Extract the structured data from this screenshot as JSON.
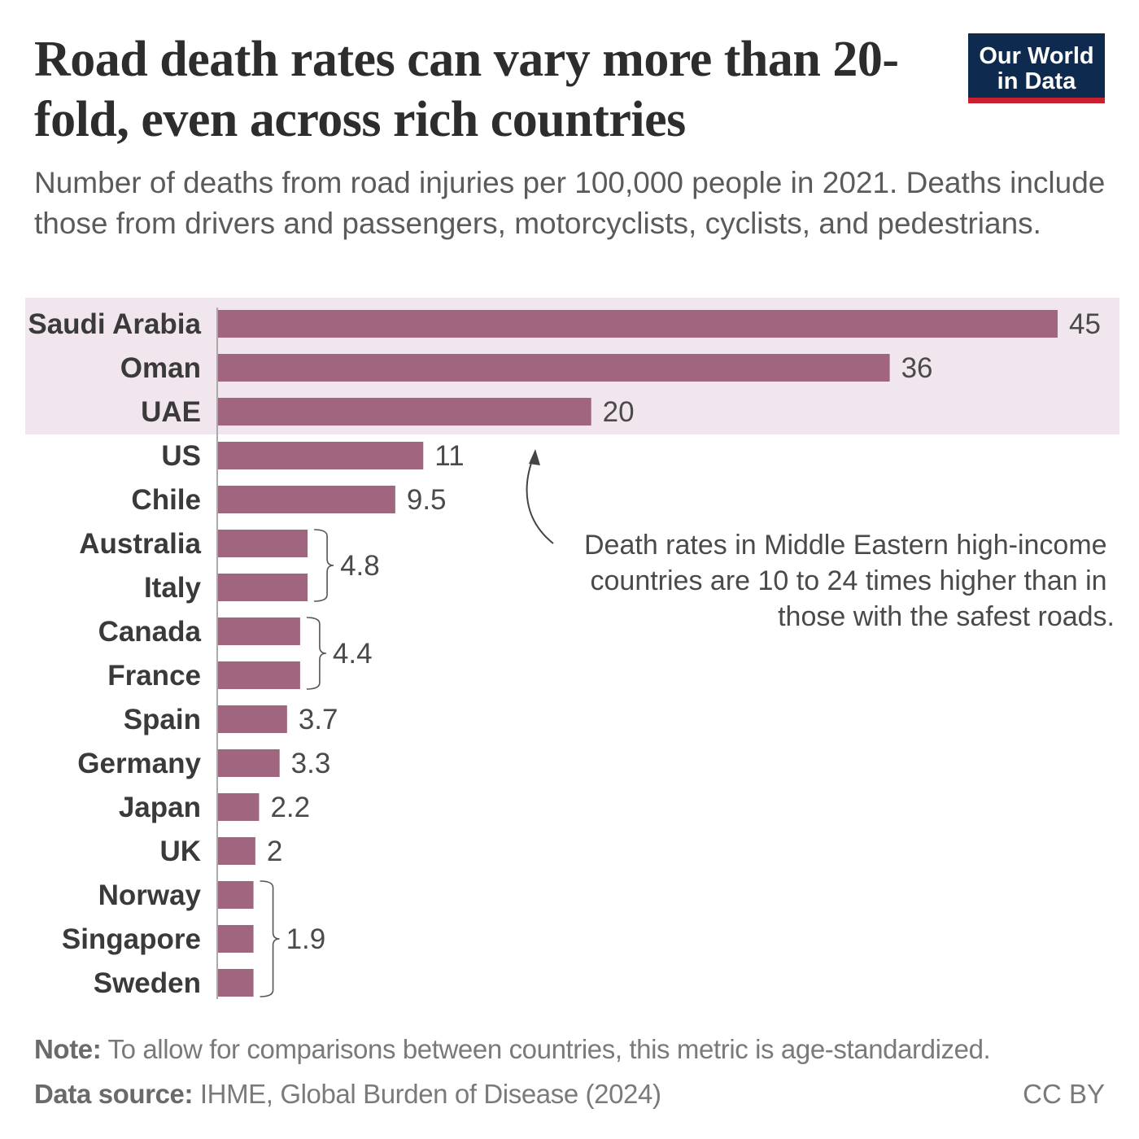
{
  "title": "Road death rates can vary more than 20-fold, even across rich countries",
  "subtitle": "Number of deaths from road injuries per 100,000 people in 2021. Deaths include those from drivers and passengers, motorcyclists, cyclists, and pedestrians.",
  "logo": {
    "line1": "Our World",
    "line2": "in Data"
  },
  "colors": {
    "bar": "#a0657f",
    "highlight": "#f1e6ed",
    "logo_bg": "#0e2a4e",
    "logo_accent": "#c8202f"
  },
  "chart_data": {
    "type": "bar",
    "orientation": "horizontal",
    "categories": [
      "Saudi Arabia",
      "Oman",
      "UAE",
      "US",
      "Chile",
      "Australia",
      "Italy",
      "Canada",
      "France",
      "Spain",
      "Germany",
      "Japan",
      "UK",
      "Norway",
      "Singapore",
      "Sweden"
    ],
    "values": [
      45,
      36,
      20,
      11,
      9.5,
      4.8,
      4.8,
      4.4,
      4.4,
      3.7,
      3.3,
      2.2,
      2,
      1.9,
      1.9,
      1.9
    ],
    "value_labels": [
      "45",
      "36",
      "20",
      "11",
      "9.5",
      "",
      "",
      "",
      "",
      "3.7",
      "3.3",
      "2.2",
      "2",
      "",
      "",
      ""
    ],
    "grouped_labels": [
      {
        "label": "4.8",
        "categories": [
          "Australia",
          "Italy"
        ]
      },
      {
        "label": "4.4",
        "categories": [
          "Canada",
          "France"
        ]
      },
      {
        "label": "1.9",
        "categories": [
          "Norway",
          "Singapore",
          "Sweden"
        ]
      }
    ],
    "highlighted": [
      "Saudi Arabia",
      "Oman",
      "UAE"
    ],
    "xlim": [
      0,
      45
    ],
    "annotation": "Death rates in Middle Eastern high-income countries are 10 to 24 times higher than in those with the safest roads."
  },
  "annotation_lines": [
    "Death rates in Middle Eastern high-income",
    "countries are 10 to 24 times higher than in",
    "those with the safest roads."
  ],
  "footer": {
    "note_label": "Note:",
    "note": "To allow for comparisons between countries, this metric is age-standardized.",
    "source_label": "Data source:",
    "source": "IHME, Global Burden of Disease (2024)",
    "license": "CC BY"
  }
}
